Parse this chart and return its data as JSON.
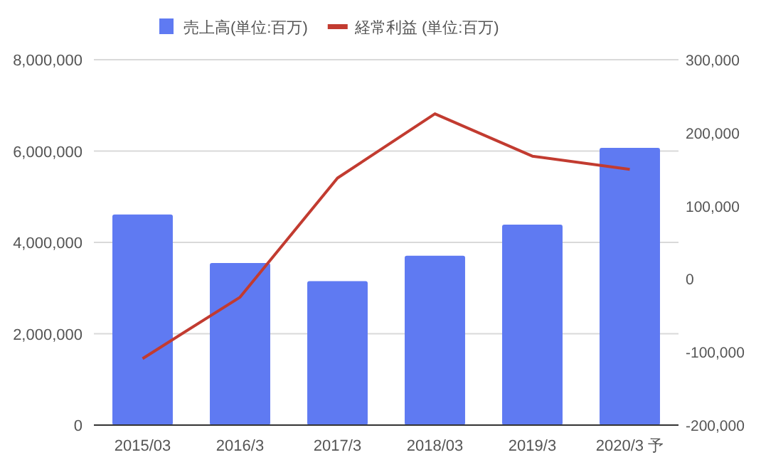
{
  "chart_data": {
    "type": "bar",
    "categories": [
      "2015/03",
      "2016/3",
      "2017/3",
      "2018/03",
      "2019/3",
      "2020/3 予"
    ],
    "series": [
      {
        "name": "売上高(単位:百万)",
        "color": "#5f7af2",
        "values": [
          4610000,
          3550000,
          3150000,
          3710000,
          4390000,
          6070000
        ]
      },
      {
        "name": "経常利益 (単位:百万)",
        "type": "line",
        "axis": "y2",
        "color": "#c23b30",
        "values": [
          -109000,
          -25000,
          138000,
          226000,
          168000,
          150000
        ]
      }
    ],
    "ylim": [
      0,
      8000000
    ],
    "yticks": [
      {
        "value": 0,
        "label": "0"
      },
      {
        "value": 2000000,
        "label": "2,000,000"
      },
      {
        "value": 4000000,
        "label": "4,000,000"
      },
      {
        "value": 6000000,
        "label": "6,000,000"
      },
      {
        "value": 8000000,
        "label": "8,000,000"
      }
    ],
    "y2lim": [
      -200000,
      300000
    ],
    "y2ticks": [
      {
        "value": -200000,
        "label": "-200,000"
      },
      {
        "value": -100000,
        "label": "-100,000"
      },
      {
        "value": 0,
        "label": "0"
      },
      {
        "value": 100000,
        "label": "100,000"
      },
      {
        "value": 200000,
        "label": "200,000"
      },
      {
        "value": 300000,
        "label": "300,000"
      }
    ],
    "grid": "y",
    "legend": "top",
    "marker": "none",
    "line_style": "solid"
  }
}
